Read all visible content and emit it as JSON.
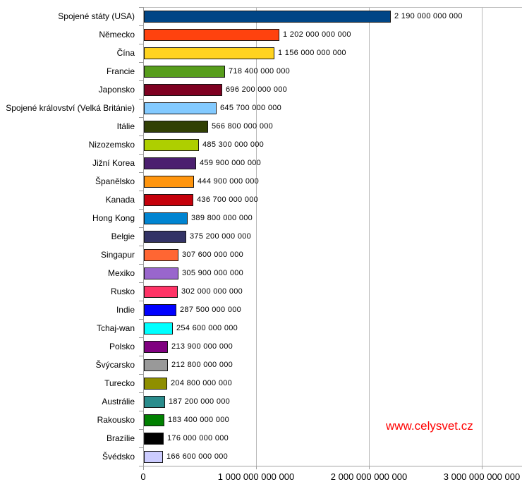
{
  "watermark": {
    "text": "www.celysvet.cz",
    "color": "#ff0000"
  },
  "style": {
    "background": "#ffffff",
    "gridline_color": "#b9b9b9",
    "axis_color": "#9a9a9a",
    "bar_border_color": "#151515",
    "text_color": "#000000"
  },
  "chart_data": {
    "type": "bar",
    "orientation": "horizontal",
    "title": "",
    "xlabel": "",
    "ylabel": "",
    "grid": "vertical major gridlines",
    "legend": "none",
    "xlim": [
      0,
      3340000000000
    ],
    "categories": [
      "Spojené státy (USA)",
      "Německo",
      "Čína",
      "Francie",
      "Japonsko",
      "Spojené království (Velká Británie)",
      "Itálie",
      "Nizozemsko",
      "Jižní Korea",
      "Španělsko",
      "Kanada",
      "Hong Kong",
      "Belgie",
      "Singapur",
      "Mexiko",
      "Rusko",
      "Indie",
      "Tchaj-wan",
      "Polsko",
      "Švýcarsko",
      "Turecko",
      "Austrálie",
      "Rakousko",
      "Brazílie",
      "Švédsko"
    ],
    "values": [
      2190000000000,
      1202000000000,
      1156000000000,
      718400000000,
      696200000000,
      645700000000,
      566800000000,
      485300000000,
      459900000000,
      444900000000,
      436700000000,
      389800000000,
      375200000000,
      307600000000,
      305900000000,
      302000000000,
      287500000000,
      254600000000,
      213900000000,
      212800000000,
      204800000000,
      187200000000,
      183400000000,
      176000000000,
      166600000000
    ],
    "value_labels": [
      "2 190 000 000 000",
      "1 202 000 000 000",
      "1 156 000 000 000",
      "718 400 000 000",
      "696 200 000 000",
      "645 700 000 000",
      "566 800 000 000",
      "485 300 000 000",
      "459 900 000 000",
      "444 900 000 000",
      "436 700 000 000",
      "389 800 000 000",
      "375 200 000 000",
      "307 600 000 000",
      "305 900 000 000",
      "302 000 000 000",
      "287 500 000 000",
      "254 600 000 000",
      "213 900 000 000",
      "212 800 000 000",
      "204 800 000 000",
      "187 200 000 000",
      "183 400 000 000",
      "176 000 000 000",
      "166 600 000 000"
    ],
    "bar_colors": [
      "#004586",
      "#ff420e",
      "#ffd320",
      "#579d1c",
      "#7e0021",
      "#83caff",
      "#314004",
      "#aecf00",
      "#4b1f6f",
      "#ff950e",
      "#c5000b",
      "#0084d1",
      "#333366",
      "#ff6633",
      "#9966cc",
      "#ff3366",
      "#0000ff",
      "#00ffff",
      "#800080",
      "#999999",
      "#8f8f00",
      "#2a8c8c",
      "#008000",
      "#000000",
      "#ccccff"
    ],
    "x_axis": {
      "tick_labels": [
        "0",
        "1 000 000 000 000",
        "2 000 000 000 000",
        "3 000 000 000 000"
      ],
      "tick_values": [
        0,
        1000000000000,
        2000000000000,
        3000000000000
      ]
    }
  }
}
